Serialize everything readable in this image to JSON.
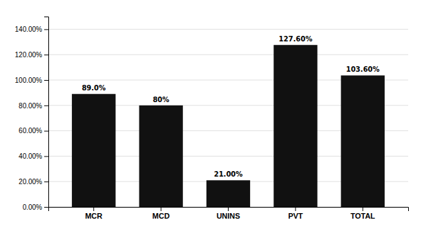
{
  "chart_data": {
    "type": "bar",
    "categories": [
      "MCR",
      "MCD",
      "UNINS",
      "PVT",
      "TOTAL"
    ],
    "values": [
      89.0,
      80.0,
      21.0,
      127.6,
      103.6
    ],
    "value_labels": [
      "89.0%",
      "80%",
      "21.00%",
      "127.60%",
      "103.60%"
    ],
    "data_labels": true,
    "color": "#111111",
    "ylim": [
      0,
      150
    ],
    "yticks": [
      {
        "value": 0,
        "label": "0.00%"
      },
      {
        "value": 20,
        "label": "20.00%"
      },
      {
        "value": 40,
        "label": "40.00%"
      },
      {
        "value": 60,
        "label": "60.00%"
      },
      {
        "value": 80,
        "label": "80.00%"
      },
      {
        "value": 100,
        "label": "100.00%"
      },
      {
        "value": 120,
        "label": "120.00%"
      },
      {
        "value": 140,
        "label": "140.00%"
      }
    ],
    "grid": true
  }
}
